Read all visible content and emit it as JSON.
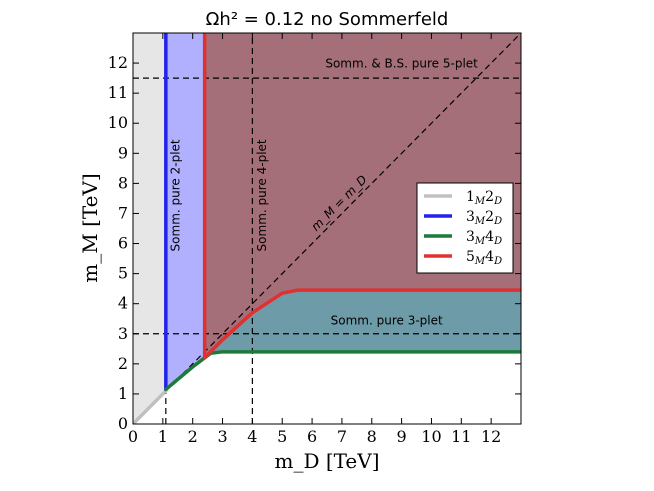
{
  "title": "Ωh² = 0.12 no Sommerfeld",
  "chart_data": {
    "type": "area",
    "title": "Ωh² = 0.12 no Sommerfeld",
    "xlabel": "m_D [TeV]",
    "ylabel": "m_M [TeV]",
    "xlim": [
      0,
      13
    ],
    "ylim": [
      0,
      13
    ],
    "xticks": [
      "0",
      "1",
      "2",
      "3",
      "4",
      "5",
      "6",
      "7",
      "8",
      "9",
      "10",
      "11",
      "12"
    ],
    "yticks": [
      "0",
      "1",
      "2",
      "3",
      "4",
      "5",
      "6",
      "7",
      "8",
      "9",
      "10",
      "11",
      "12"
    ],
    "colors": {
      "grey_region": "#e6e6e6",
      "blue_region": "#b0b0ff",
      "maroon_region": "#a56f79",
      "teal_region": "#6d9ba8",
      "grey_line": "#c0c0c0",
      "blue_line": "#2222ee",
      "green_line": "#1c7a3a",
      "red_line": "#e03030"
    },
    "series": [
      {
        "name": "1_M 2_D",
        "color": "#c0c0c0",
        "x": [
          0,
          1.1
        ],
        "y": [
          0,
          1.1
        ]
      },
      {
        "name": "3_M 2_D",
        "color": "#2222ee",
        "x": [
          1.1,
          1.1,
          1.1
        ],
        "y": [
          13,
          1.3,
          1.15
        ]
      },
      {
        "name": "3_M 4_D",
        "color": "#1c7a3a",
        "x": [
          1.1,
          2.0,
          2.6,
          3.0,
          13
        ],
        "y": [
          1.15,
          1.9,
          2.35,
          2.4,
          2.4
        ]
      },
      {
        "name": "5_M 4_D",
        "color": "#e03030",
        "x": [
          2.4,
          2.4,
          2.4,
          3.0,
          4.0,
          5.0,
          5.5,
          13
        ],
        "y": [
          13,
          2.6,
          2.2,
          2.8,
          3.7,
          4.35,
          4.45,
          4.45
        ]
      }
    ],
    "reference_lines": {
      "vertical": [
        1.1,
        4.0
      ],
      "horizontal": [
        3.0,
        11.5
      ],
      "diagonal": "m_M = m_D"
    },
    "annotations": {
      "somm_2plet": "Somm. pure 2-plet",
      "somm_4plet": "Somm. pure 4-plet",
      "somm_3plet": "Somm. pure 3-plet",
      "somm_5plet": "Somm. & B.S. pure 5-plet",
      "diag": "m_M = m_D"
    },
    "legend": {
      "position": "center-right",
      "entries": [
        {
          "label": "1_M 2_D",
          "main": "1",
          "sub": "M",
          "main2": "2",
          "sub2": "D",
          "color": "#c0c0c0"
        },
        {
          "label": "3_M 2_D",
          "main": "3",
          "sub": "M",
          "main2": "2",
          "sub2": "D",
          "color": "#2222ee"
        },
        {
          "label": "3_M 4_D",
          "main": "3",
          "sub": "M",
          "main2": "4",
          "sub2": "D",
          "color": "#1c7a3a"
        },
        {
          "label": "5_M 4_D",
          "main": "5",
          "sub": "M",
          "main2": "4",
          "sub2": "D",
          "color": "#e03030"
        }
      ]
    }
  }
}
